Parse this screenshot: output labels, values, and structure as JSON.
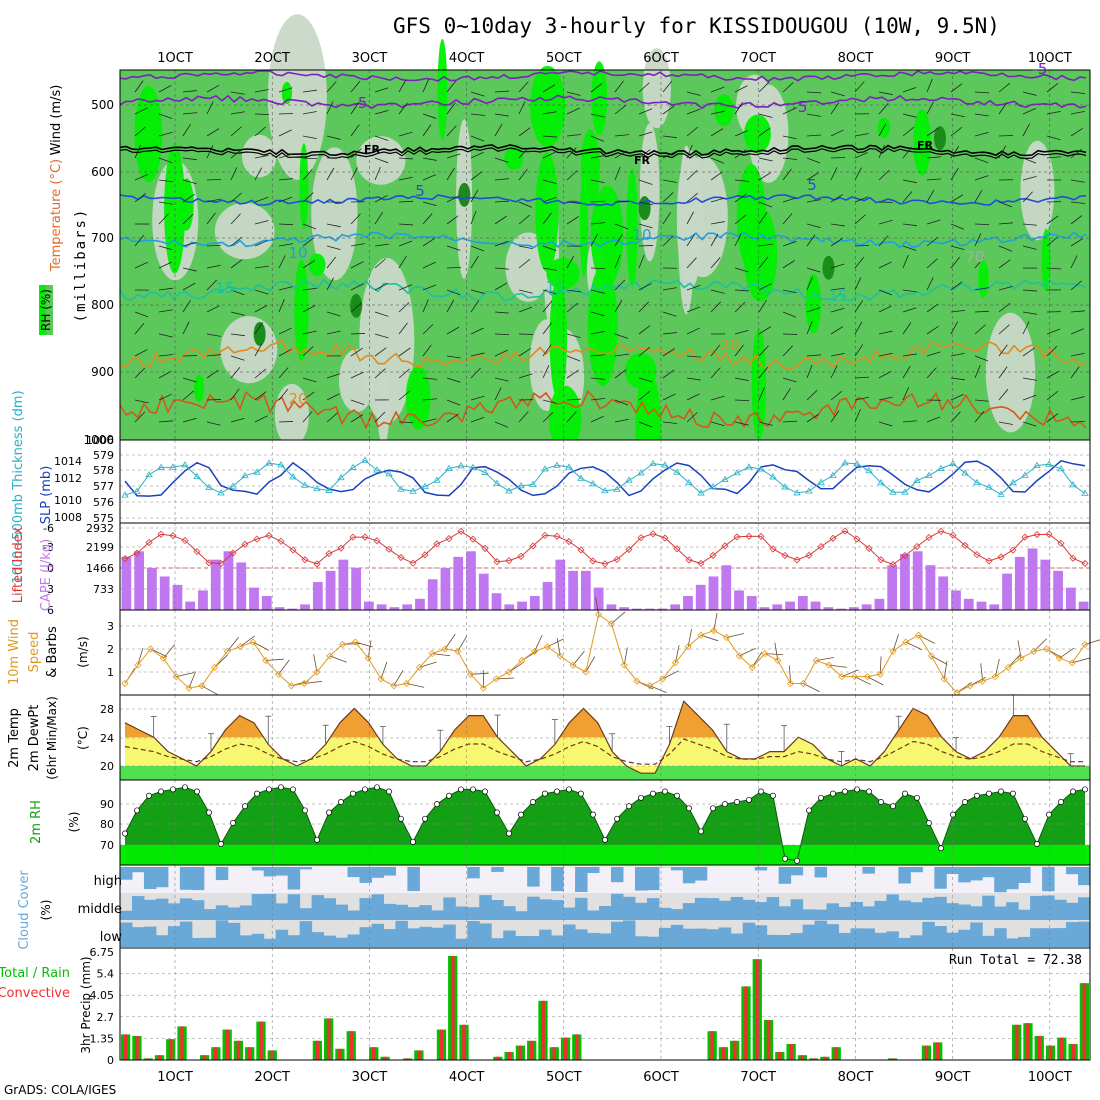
{
  "title": "GFS 0~10day 3-hourly for KISSIDOUGOU (10W, 9.5N)",
  "footer": "GrADS: COLA/IGES",
  "dates": [
    "1OCT",
    "2OCT",
    "3OCT",
    "4OCT",
    "5OCT",
    "6OCT",
    "7OCT",
    "8OCT",
    "9OCT",
    "10OCT"
  ],
  "colors": {
    "rh_light": "#c8d8c8",
    "rh_mid": "#5cc85c",
    "rh_bright": "#00f000",
    "rh_dark": "#1a8c1a",
    "temp_minus5": "#7d1fbf",
    "temp_fr": "#000000",
    "temp_5": "#1f4fd8",
    "temp_10": "#1f9fe0",
    "temp_15": "#1fbf9f",
    "temp_20": "#e08a1f",
    "temp_25": "#d05a1a",
    "thickness": "#2ab0c8",
    "slp": "#1a3fbf",
    "lifted": "#d83a3a",
    "cape": "#c078f0",
    "wind10": "#e09a1f",
    "temp2m_fill": "#f8f870",
    "temp2m_max": "#f0a030",
    "dew_fill": "#50e050",
    "rh2m_fill": "#14a014",
    "rh2m_band": "#00f000",
    "cloud": "#6aa8d8",
    "cloud_bg": "#e0e0e0",
    "precip_total": "#00c000",
    "precip_conv": "#f03030"
  },
  "upper": {
    "ylabel": "(millibars)",
    "legend_wind": "Wind (m/s)",
    "legend_temp": "Temperature (°C)",
    "legend_rh": "RH (%)",
    "ticks": [
      "500",
      "600",
      "700",
      "800",
      "900",
      "1000"
    ],
    "contour_labels": [
      "-5",
      "-5",
      "FR",
      "FR",
      "FR",
      "-5",
      "5",
      "5",
      "10",
      "10",
      "15",
      "15",
      "15",
      "20",
      "20",
      "70"
    ]
  },
  "thick_panel": {
    "label_thick": "1000~500mb Thickness (dm)",
    "label_slp": "SLP (mb)",
    "left_ticks": [
      "579",
      "578",
      "577",
      "576",
      "575"
    ],
    "right_ticks": [
      "1016",
      "1014",
      "1012",
      "1010",
      "1008",
      "1006"
    ],
    "left_extra": "576",
    "left_top_extra": "1006"
  },
  "cape_panel": {
    "label_li": "Lifted Index",
    "label_cape": "CAPE (J/kg)",
    "left_ticks": [
      "-6",
      "-3",
      "0",
      "3",
      "6"
    ],
    "right_ticks": [
      "2932",
      "2199",
      "1466",
      "733"
    ],
    "cape_values": [
      1900,
      2100,
      1500,
      1200,
      900,
      300,
      700,
      1800,
      2100,
      1700,
      800,
      500,
      100,
      50,
      200,
      1000,
      1400,
      1800,
      1500,
      300,
      200,
      100,
      200,
      400,
      1100,
      1500,
      1900,
      2100,
      1300,
      600,
      200,
      300,
      500,
      1000,
      1800,
      1400,
      1400,
      800,
      200,
      100,
      50,
      50,
      50,
      200,
      500,
      900,
      1200,
      1600,
      700,
      500,
      100,
      200,
      300,
      500,
      300,
      100,
      50,
      100,
      200,
      400,
      1600,
      2000,
      2100,
      1600,
      1200,
      700,
      400,
      300,
      200,
      1300,
      1900,
      2200,
      1800,
      1400,
      800,
      300
    ]
  },
  "wind_panel": {
    "label_a": "10m Wind",
    "label_b": "Speed",
    "label_c": "& Barbs",
    "unit": "(m/s)",
    "ticks": [
      "3",
      "2",
      "1"
    ],
    "speed": [
      0.5,
      1.3,
      2.0,
      1.6,
      0.8,
      0.3,
      0.4,
      1.2,
      1.9,
      2.1,
      2.3,
      1.5,
      0.9,
      0.4,
      0.5,
      1.0,
      1.7,
      2.2,
      2.3,
      1.6,
      0.7,
      0.4,
      0.5,
      1.2,
      1.8,
      2.0,
      1.9,
      0.9,
      0.3,
      0.7,
      1.0,
      1.5,
      1.9,
      2.1,
      1.7,
      1.3,
      1.0,
      3.5,
      3.1,
      1.3,
      0.6,
      0.4,
      0.7,
      1.4,
      2.1,
      2.6,
      2.8,
      2.5,
      1.7,
      1.2,
      1.8,
      1.5,
      0.5,
      0.5,
      1.5,
      1.3,
      0.8,
      0.8,
      0.8,
      0.9,
      1.9,
      2.3,
      2.6,
      1.7,
      0.7,
      0.1,
      0.4,
      0.6,
      0.8,
      1.2,
      1.6,
      1.9,
      2.0,
      1.6,
      1.4,
      2.2
    ]
  },
  "temp_panel": {
    "label_a": "2m Temp",
    "label_b": "2m DewPt",
    "label_c": "(6hr Min/Max)",
    "unit": "(°C)",
    "ticks": [
      "28",
      "24",
      "20"
    ],
    "temp": [
      26,
      25,
      24,
      22,
      21,
      20,
      22,
      25,
      27,
      26,
      23,
      21,
      20,
      21,
      23,
      26,
      28,
      26,
      23,
      21,
      20,
      20,
      22,
      25,
      27,
      27,
      24,
      22,
      20,
      21,
      23,
      26,
      28,
      26,
      22,
      20,
      19,
      19,
      23,
      29,
      27,
      25,
      22,
      21,
      21,
      22,
      22,
      24,
      23,
      21,
      20,
      21,
      20,
      22,
      25,
      28,
      27,
      24,
      22,
      21,
      22,
      24,
      27,
      27,
      24,
      22,
      20,
      20
    ]
  },
  "rh_panel": {
    "label": "2m RH",
    "unit": "(%)",
    "ticks": [
      "90",
      "80",
      "70"
    ],
    "rh": [
      75,
      86,
      93,
      95,
      96,
      97,
      95,
      85,
      70,
      80,
      88,
      94,
      96,
      97,
      96,
      86,
      72,
      85,
      90,
      94,
      96,
      97,
      95,
      82,
      71,
      82,
      89,
      93,
      96,
      96,
      95,
      85,
      75,
      84,
      90,
      94,
      95,
      96,
      94,
      84,
      72,
      82,
      88,
      92,
      94,
      95,
      93,
      87,
      76,
      87,
      89,
      90,
      91,
      95,
      93,
      63,
      62,
      86,
      92,
      94,
      95,
      96,
      95,
      90,
      88,
      94,
      92,
      80,
      68,
      84,
      90,
      93,
      94,
      95,
      94,
      82,
      70,
      84,
      90,
      95,
      96
    ]
  },
  "cloud_panel": {
    "label": "Cloud Cover",
    "unit": "(%)",
    "rows": [
      "high",
      "middle",
      "low"
    ]
  },
  "precip_panel": {
    "label_total": "Total / Rain",
    "label_conv": "Convective",
    "ylabel": "3hr Precip (mm)",
    "ticks": [
      "6.75",
      "5.4",
      "4.05",
      "2.7",
      "1.35",
      "0"
    ],
    "run_total": "Run Total = 72.38",
    "values": [
      1.6,
      1.5,
      0.1,
      0.3,
      1.3,
      2.1,
      0,
      0.3,
      0.8,
      1.9,
      1.2,
      0.8,
      2.4,
      0.6,
      0,
      0,
      0,
      1.2,
      2.6,
      0.7,
      1.8,
      0,
      0.8,
      0.2,
      0,
      0.1,
      0.6,
      0,
      1.9,
      6.5,
      2.2,
      0,
      0,
      0.2,
      0.5,
      0.9,
      1.2,
      3.7,
      0.8,
      1.4,
      1.6,
      0,
      0,
      0,
      0,
      0,
      0,
      0,
      0,
      0,
      0,
      0,
      1.8,
      0.8,
      1.2,
      4.6,
      6.3,
      2.5,
      0.5,
      1.0,
      0.3,
      0.1,
      0.2,
      0.8,
      0,
      0,
      0,
      0,
      0.1,
      0,
      0,
      0.9,
      1.1,
      0,
      0,
      0,
      0,
      0,
      0,
      2.2,
      2.3,
      1.5,
      0.9,
      1.4,
      1.0,
      4.8
    ]
  }
}
